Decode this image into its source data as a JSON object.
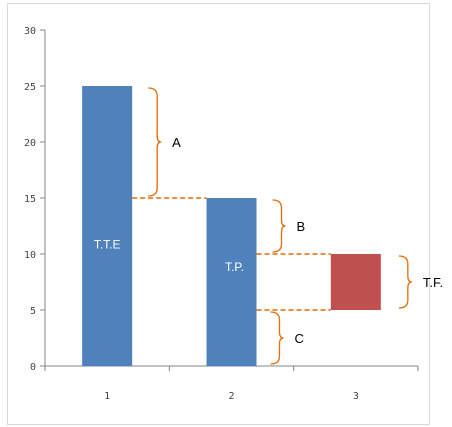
{
  "chart_data": {
    "type": "bar",
    "title": "",
    "xlabel": "",
    "ylabel": "",
    "categories": [
      "1",
      "2",
      "3"
    ],
    "bars": [
      {
        "category": "1",
        "bottom": 0,
        "top": 25,
        "label": "T.T.E",
        "color": "#4f81bd"
      },
      {
        "category": "2",
        "bottom": 0,
        "top": 15,
        "label": "T.P.",
        "color": "#4f81bd"
      },
      {
        "category": "3",
        "bottom": 5,
        "top": 10,
        "label": "",
        "color": "#c0504d"
      }
    ],
    "ylim": [
      0,
      30
    ],
    "yticks": [
      "0",
      "5",
      "10",
      "15",
      "20",
      "25",
      "30"
    ],
    "grid": false,
    "legend": "none",
    "annotations": [
      {
        "label": "A",
        "y_from": 15,
        "y_to": 25
      },
      {
        "label": "B",
        "y_from": 10,
        "y_to": 15
      },
      {
        "label": "C",
        "y_from": 0,
        "y_to": 5
      },
      {
        "label": "T.F.",
        "y_from": 5,
        "y_to": 10
      }
    ],
    "connector_color": "#e46c0a",
    "axis_color": "#868686"
  }
}
